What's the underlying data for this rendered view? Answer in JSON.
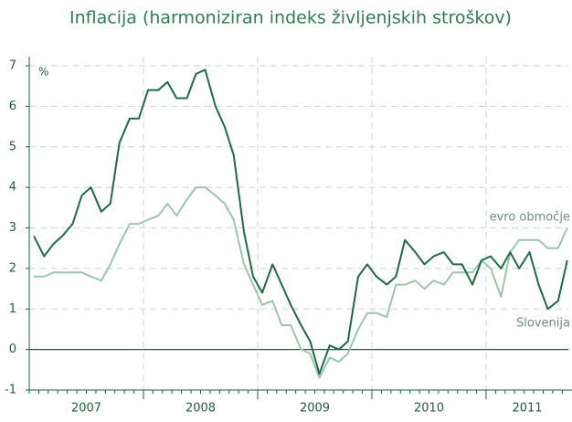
{
  "chart_data": {
    "type": "line",
    "title": "Inflacija (harmoniziran indeks življenjskih stroškov)",
    "y_unit": "%",
    "x": [
      2007.04,
      2007.13,
      2007.21,
      2007.29,
      2007.38,
      2007.46,
      2007.54,
      2007.63,
      2007.71,
      2007.79,
      2007.88,
      2007.96,
      2008.04,
      2008.13,
      2008.21,
      2008.29,
      2008.38,
      2008.46,
      2008.54,
      2008.63,
      2008.71,
      2008.79,
      2008.88,
      2008.96,
      2009.04,
      2009.13,
      2009.21,
      2009.29,
      2009.38,
      2009.46,
      2009.54,
      2009.63,
      2009.71,
      2009.79,
      2009.88,
      2009.96,
      2010.04,
      2010.13,
      2010.21,
      2010.29,
      2010.38,
      2010.46,
      2010.54,
      2010.63,
      2010.71,
      2010.79,
      2010.88,
      2010.96,
      2011.04,
      2011.13,
      2011.21,
      2011.29,
      2011.38,
      2011.46,
      2011.54,
      2011.63,
      2011.71
    ],
    "series": [
      {
        "name": "Slovenija",
        "color": "#1e6b45",
        "values": [
          2.8,
          2.3,
          2.6,
          2.8,
          3.1,
          3.8,
          4.0,
          3.4,
          3.6,
          5.1,
          5.7,
          5.7,
          6.4,
          6.4,
          6.6,
          6.2,
          6.2,
          6.8,
          6.9,
          6.0,
          5.5,
          4.8,
          2.9,
          1.8,
          1.4,
          2.1,
          1.6,
          1.1,
          0.6,
          0.2,
          -0.6,
          0.1,
          0.0,
          0.2,
          1.8,
          2.1,
          1.8,
          1.6,
          1.8,
          2.7,
          2.4,
          2.1,
          2.3,
          2.4,
          2.1,
          2.1,
          1.6,
          2.2,
          2.3,
          2.0,
          2.4,
          2.0,
          2.4,
          1.6,
          1.0,
          1.2,
          2.2
        ]
      },
      {
        "name": "evro območje",
        "color": "#9cc5ad",
        "values": [
          1.8,
          1.8,
          1.9,
          1.9,
          1.9,
          1.9,
          1.8,
          1.7,
          2.1,
          2.6,
          3.1,
          3.1,
          3.2,
          3.3,
          3.6,
          3.3,
          3.7,
          4.0,
          4.0,
          3.8,
          3.6,
          3.2,
          2.1,
          1.6,
          1.1,
          1.2,
          0.6,
          0.6,
          0.0,
          -0.1,
          -0.7,
          -0.2,
          -0.3,
          -0.1,
          0.5,
          0.9,
          0.9,
          0.8,
          1.6,
          1.6,
          1.7,
          1.5,
          1.7,
          1.6,
          1.9,
          1.9,
          1.9,
          2.2,
          2.0,
          1.3,
          2.4,
          2.7,
          2.7,
          2.7,
          2.5,
          2.5,
          3.0
        ]
      }
    ],
    "xlim": [
      2007,
      2011.72
    ],
    "xticks": [
      {
        "value": 2007.5,
        "label": "2007"
      },
      {
        "value": 2008.5,
        "label": "2008"
      },
      {
        "value": 2009.5,
        "label": "2009"
      },
      {
        "value": 2010.5,
        "label": "2010"
      },
      {
        "value": 2011.36,
        "label": "2011"
      }
    ],
    "xgrid": [
      2008,
      2009,
      2010,
      2011
    ],
    "ylim": [
      -1,
      7
    ],
    "yticks": [
      -1,
      0,
      1,
      2,
      3,
      4,
      5,
      6,
      7
    ],
    "grid": true
  }
}
